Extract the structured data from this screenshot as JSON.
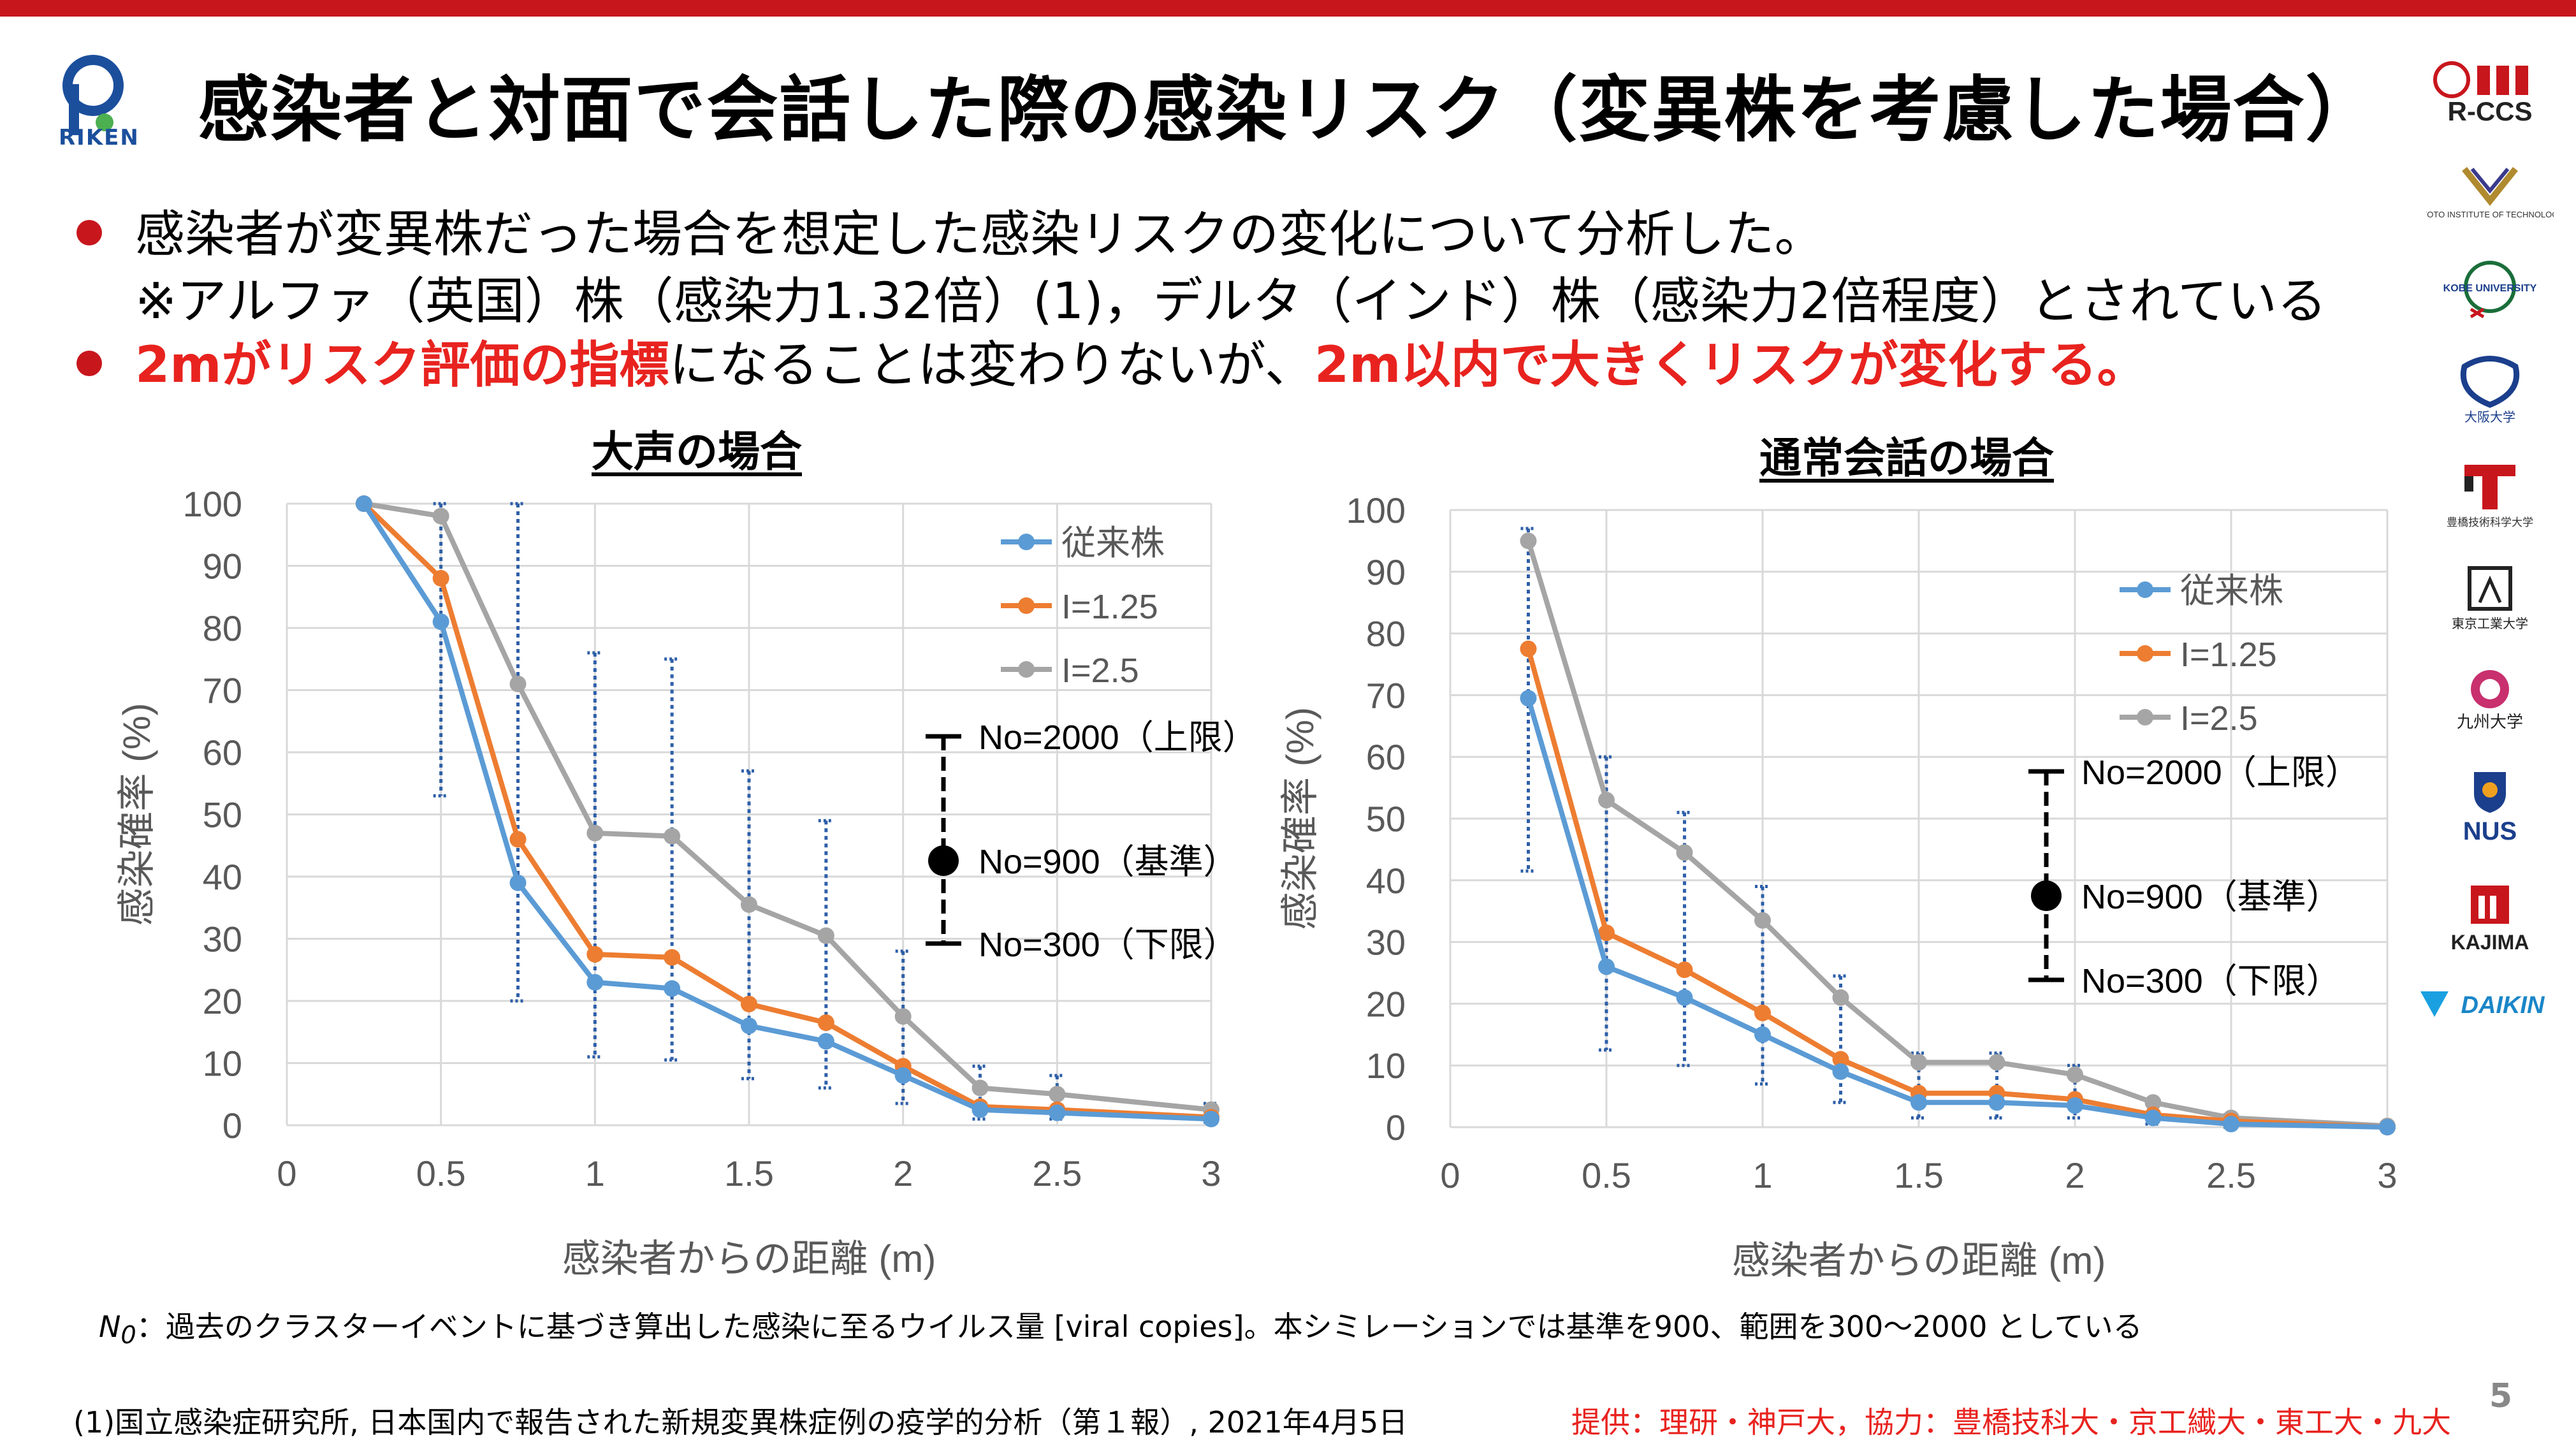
{
  "slide": {
    "title": "感染者と対面で会話した際の感染リスク（変異株を考慮した場合）",
    "page_number": "5",
    "riken_logo_text": "RIKEN",
    "bullets": [
      {
        "line1": "感染者が変異株だった場合を想定した感染リスクの変化について分析した。",
        "line2": "※アルファ（英国）株（感染力1.32倍）(1)，デルタ（インド）株（感染力2倍程度）とされている"
      },
      {
        "part1": "2mがリスク評価の指標",
        "part2": "になることは変わりないが、",
        "part3": "2m以内で大きくリスクが変化する。"
      }
    ],
    "footnote_n0_label": "N",
    "footnote_n0_sub": "0",
    "footnote_n0": "：過去のクラスターイベントに基づき算出した感染に至るウイルス量 [viral copies]。本シミレーションでは基準を900、範囲を300～2000 としている",
    "reference": "(1)国立感染症研究所, 日本国内で報告された新規変異株症例の疫学的分析（第１報）, 2021年4月5日",
    "credit": "提供：理研・神戸大，協力：豊橋技科大・京工繊大・東工大・九大",
    "side_logos": [
      "R-CCS",
      "KYOTO INSTITUTE OF TECHNOLOGY",
      "KOBE UNIVERSITY",
      "大阪大学",
      "豊橋技術科学大学",
      "東京工業大学",
      "九州大学",
      "NUS",
      "KAJIMA",
      "DAIKIN"
    ]
  },
  "colors": {
    "accent_red": "#e8231f",
    "bar_red": "#c8161d",
    "blue": "#5b9bd5",
    "orange": "#ed7d31",
    "gray": "#a5a5a5",
    "errorbar": "#2e5fa8"
  },
  "chart_data": [
    {
      "type": "line",
      "title": "大声の場合",
      "xlabel": "感染者からの距離 (m)",
      "ylabel": "感染確率 (%)",
      "xlim": [
        0,
        3
      ],
      "ylim": [
        0,
        100
      ],
      "xticks": [
        "0",
        "0.5",
        "1",
        "1.5",
        "2",
        "2.5",
        "3"
      ],
      "yticks": [
        "0",
        "10",
        "20",
        "30",
        "40",
        "50",
        "60",
        "70",
        "80",
        "90",
        "100"
      ],
      "grid": true,
      "legend_position": "top-right",
      "x": [
        0.25,
        0.5,
        0.75,
        1.0,
        1.25,
        1.5,
        1.75,
        2.0,
        2.25,
        2.5,
        3.0
      ],
      "series": [
        {
          "name": "従来株",
          "color": "#5b9bd5",
          "values": [
            100,
            81,
            39,
            23,
            22,
            16,
            13.5,
            8,
            2.5,
            2,
            1
          ]
        },
        {
          "name": "I=1.25",
          "color": "#ed7d31",
          "values": [
            100,
            88,
            46,
            27.5,
            27,
            19.5,
            16.5,
            9.5,
            3,
            2.5,
            1.3
          ]
        },
        {
          "name": "I=2.5",
          "color": "#a5a5a5",
          "values": [
            100,
            98,
            71,
            47,
            46.5,
            35.5,
            30.5,
            17.5,
            6,
            5,
            2.5
          ]
        }
      ],
      "error_bars": [
        {
          "x": 0.5,
          "low": 53,
          "high": 100
        },
        {
          "x": 0.75,
          "low": 20,
          "high": 100
        },
        {
          "x": 1.0,
          "low": 11,
          "high": 76
        },
        {
          "x": 1.25,
          "low": 10.5,
          "high": 75
        },
        {
          "x": 1.5,
          "low": 7.5,
          "high": 57
        },
        {
          "x": 1.75,
          "low": 6,
          "high": 49
        },
        {
          "x": 2.0,
          "low": 3.5,
          "high": 28
        },
        {
          "x": 2.25,
          "low": 1,
          "high": 9.5
        },
        {
          "x": 2.5,
          "low": 1,
          "high": 8
        },
        {
          "x": 3.0,
          "low": 0.5,
          "high": 3.5
        }
      ],
      "errorbar_legend": [
        "No=2000（上限）",
        "No=900（基準）",
        "No=300（下限）"
      ]
    },
    {
      "type": "line",
      "title": "通常会話の場合",
      "xlabel": "感染者からの距離 (m)",
      "ylabel": "感染確率 (%)",
      "xlim": [
        0,
        3
      ],
      "ylim": [
        0,
        100
      ],
      "xticks": [
        "0",
        "0.5",
        "1",
        "1.5",
        "2",
        "2.5",
        "3"
      ],
      "yticks": [
        "0",
        "10",
        "20",
        "30",
        "40",
        "50",
        "60",
        "70",
        "80",
        "90",
        "100"
      ],
      "grid": true,
      "legend_position": "top-right",
      "x": [
        0.25,
        0.5,
        0.75,
        1.0,
        1.25,
        1.5,
        1.75,
        2.0,
        2.25,
        2.5,
        3.0
      ],
      "series": [
        {
          "name": "従来株",
          "color": "#5b9bd5",
          "values": [
            69.5,
            26,
            21,
            15,
            9,
            4,
            4,
            3.5,
            1.5,
            0.5,
            0
          ]
        },
        {
          "name": "I=1.25",
          "color": "#ed7d31",
          "values": [
            77.5,
            31.5,
            25.5,
            18.5,
            11,
            5.5,
            5.5,
            4.5,
            2,
            1,
            0
          ]
        },
        {
          "name": "I=2.5",
          "color": "#a5a5a5",
          "values": [
            95,
            53,
            44.5,
            33.5,
            21,
            10.5,
            10.5,
            8.5,
            4,
            1.5,
            0.2
          ]
        }
      ],
      "error_bars": [
        {
          "x": 0.25,
          "low": 41.5,
          "high": 97
        },
        {
          "x": 0.5,
          "low": 12.5,
          "high": 60
        },
        {
          "x": 0.75,
          "low": 10,
          "high": 51
        },
        {
          "x": 1.0,
          "low": 7,
          "high": 39
        },
        {
          "x": 1.25,
          "low": 4,
          "high": 24.5
        },
        {
          "x": 1.5,
          "low": 1.5,
          "high": 12
        },
        {
          "x": 1.75,
          "low": 1.5,
          "high": 12
        },
        {
          "x": 2.0,
          "low": 1.5,
          "high": 10
        },
        {
          "x": 2.25,
          "low": 0.5,
          "high": 4
        },
        {
          "x": 2.5,
          "low": 0,
          "high": 2
        }
      ],
      "errorbar_legend": [
        "No=2000（上限）",
        "No=900（基準）",
        "No=300（下限）"
      ]
    }
  ]
}
